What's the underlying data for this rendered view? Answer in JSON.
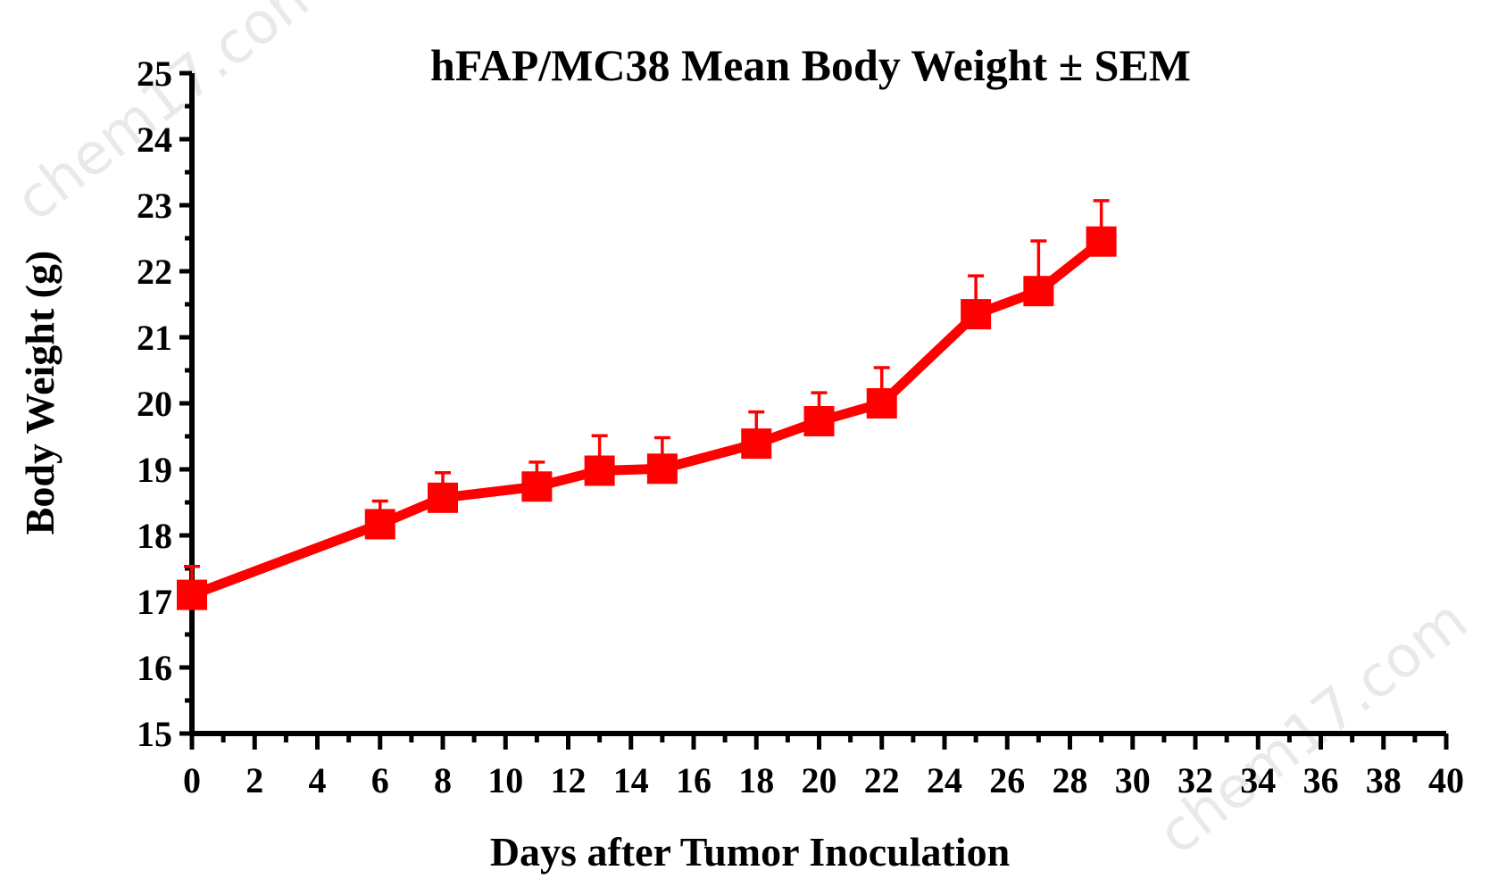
{
  "chart_data": {
    "type": "line",
    "title": "hFAP/MC38 Mean Body Weight ± SEM",
    "xlabel": "Days after Tumor Inoculation",
    "ylabel": "Body Weight (g)",
    "xlim": [
      0,
      40
    ],
    "ylim": [
      15,
      25
    ],
    "x_ticks": [
      0,
      2,
      4,
      6,
      8,
      10,
      12,
      14,
      16,
      18,
      20,
      22,
      24,
      26,
      28,
      30,
      32,
      34,
      36,
      38,
      40
    ],
    "x_tick_labels": [
      "0",
      "2",
      "4",
      "6",
      "8",
      "10",
      "12",
      "14",
      "16",
      "18",
      "20",
      "22",
      "24",
      "26",
      "28",
      "30",
      "32",
      "34",
      "36",
      "38",
      "40"
    ],
    "y_ticks": [
      15,
      16,
      17,
      18,
      19,
      20,
      21,
      22,
      23,
      24,
      25
    ],
    "y_tick_labels": [
      "15",
      "16",
      "17",
      "18",
      "19",
      "20",
      "21",
      "22",
      "23",
      "24",
      "25"
    ],
    "grid": false,
    "legend": "none",
    "series": [
      {
        "color": "#ff0000",
        "marker": "square",
        "x": [
          0,
          6,
          8,
          11,
          13,
          15,
          18,
          20,
          22,
          25,
          27,
          29
        ],
        "y": [
          17.1,
          18.17,
          18.57,
          18.74,
          18.98,
          19.01,
          19.39,
          19.73,
          20.0,
          21.35,
          21.7,
          22.45
        ],
        "sem": [
          0.43,
          0.35,
          0.38,
          0.37,
          0.53,
          0.47,
          0.48,
          0.43,
          0.54,
          0.58,
          0.76,
          0.62
        ]
      }
    ]
  },
  "watermark": {
    "text": "chem17.com",
    "color": "#e9e9e9"
  }
}
